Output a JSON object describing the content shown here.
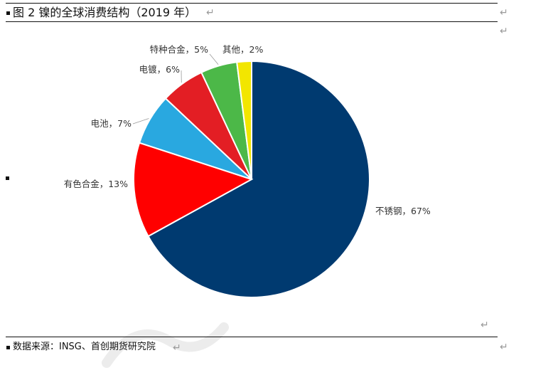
{
  "document": {
    "figure_title": "图 2  镍的全球消费结构（2019 年）",
    "source_note": "数据来源：INSG、首创期货研究院",
    "paragraph_mark": "↵"
  },
  "chart_data": {
    "type": "pie",
    "title": "",
    "categories": [
      "不锈钢",
      "有色合金",
      "电池",
      "电镀",
      "特种合金",
      "其他"
    ],
    "values": [
      67,
      13,
      7,
      6,
      5,
      2
    ],
    "labels": [
      "不锈钢，67%",
      "有色合金，13%",
      "电池，7%",
      "电镀，6%",
      "特种合金，5%",
      "其他，2%"
    ],
    "colors": [
      "#003a70",
      "#ff0000",
      "#29a8e0",
      "#e31e24",
      "#4cb848",
      "#f2e600"
    ],
    "start_angle": "12 o'clock",
    "direction": "clockwise",
    "legend": "none"
  }
}
